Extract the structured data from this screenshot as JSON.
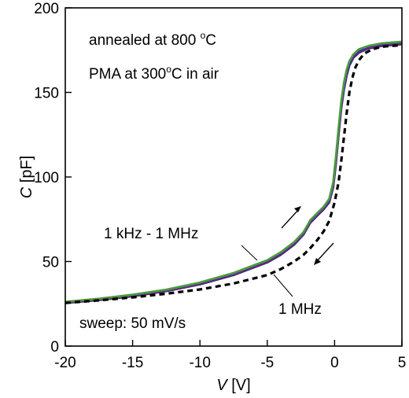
{
  "chart_data": {
    "type": "line",
    "xlabel": {
      "symbol": "V",
      "unit": " [V]"
    },
    "ylabel": {
      "symbol": "C",
      "unit": " [pF]"
    },
    "xlim": [
      -20,
      5
    ],
    "ylim": [
      0,
      200
    ],
    "xticks": [
      -20,
      -15,
      -10,
      -5,
      0,
      5
    ],
    "yticks": [
      0,
      50,
      100,
      150,
      200
    ],
    "grid": false,
    "series": [
      {
        "color": "#2a1a6b",
        "dash": false,
        "x": [
          -20,
          -17.5,
          -15,
          -12.5,
          -10,
          -7.5,
          -5,
          -4,
          -3,
          -2.3,
          -1.8,
          -1.3,
          -0.8,
          -0.4,
          -0.1,
          0.1,
          0.3,
          0.5,
          0.7,
          0.9,
          1.1,
          1.4,
          1.8,
          2.5,
          3.5,
          5
        ],
        "y": [
          25.5,
          27.2,
          29.5,
          32.5,
          36.5,
          42,
          49.5,
          54,
          60,
          66,
          73,
          77,
          81,
          85,
          94,
          108,
          125,
          141,
          152,
          160,
          166,
          170.5,
          173.5,
          176,
          177.5,
          178.5
        ]
      },
      {
        "color": "#a0206e",
        "dash": false,
        "x": [
          -20,
          -17.5,
          -15,
          -12.5,
          -10,
          -7.5,
          -5,
          -4,
          -3,
          -2.3,
          -1.8,
          -1.3,
          -0.8,
          -0.4,
          -0.1,
          0.1,
          0.3,
          0.5,
          0.7,
          0.9,
          1.1,
          1.4,
          1.8,
          2.5,
          3.5,
          5
        ],
        "y": [
          25.7,
          27.5,
          29.8,
          32.8,
          36.9,
          42.4,
          50,
          54.5,
          60.5,
          66.5,
          73.5,
          77.5,
          81.5,
          85.5,
          95,
          109,
          126,
          142,
          153,
          161,
          167,
          171,
          174,
          176.5,
          178,
          179
        ]
      },
      {
        "color": "#2f2fb0",
        "dash": false,
        "x": [
          -20,
          -17.5,
          -15,
          -12.5,
          -10,
          -7.5,
          -5,
          -4,
          -3,
          -2.3,
          -1.8,
          -1.3,
          -0.8,
          -0.4,
          -0.1,
          0.1,
          0.3,
          0.5,
          0.7,
          0.9,
          1.1,
          1.4,
          1.8,
          2.5,
          3.5,
          5
        ],
        "y": [
          26,
          27.8,
          30.1,
          33.1,
          37.2,
          42.8,
          50.4,
          55,
          61,
          67,
          74,
          78,
          82,
          86,
          96,
          110,
          127,
          143,
          154,
          162,
          167.5,
          171.5,
          174.5,
          177,
          178.5,
          179.5
        ]
      },
      {
        "color": "#4b9a3c",
        "dash": false,
        "x": [
          -20,
          -17.5,
          -15,
          -12.5,
          -10,
          -7.5,
          -5,
          -4,
          -3,
          -2.3,
          -1.8,
          -1.3,
          -0.8,
          -0.4,
          -0.1,
          0.1,
          0.3,
          0.5,
          0.7,
          0.9,
          1.1,
          1.4,
          1.8,
          2.5,
          3.5,
          5
        ],
        "y": [
          26.2,
          28,
          30.4,
          33.4,
          37.6,
          43.2,
          50.8,
          55.5,
          61.5,
          67.5,
          74.5,
          78.5,
          82.5,
          87,
          97,
          112,
          129,
          145,
          156,
          163.5,
          168.5,
          172.5,
          175.5,
          177.5,
          179,
          180
        ]
      },
      {
        "color": "#000000",
        "dash": true,
        "x": [
          -20,
          -17.5,
          -15,
          -12.5,
          -10,
          -7.5,
          -5,
          -4,
          -3,
          -2.3,
          -1.8,
          -1.3,
          -0.8,
          -0.4,
          0,
          0.3,
          0.5,
          0.7,
          0.9,
          1.1,
          1.3,
          1.5,
          1.8,
          2.2,
          2.8,
          3.5,
          5
        ],
        "y": [
          25.5,
          27,
          28.8,
          31,
          33.5,
          37,
          42,
          45.5,
          50,
          54,
          58,
          62.5,
          68,
          74,
          85,
          97,
          110,
          124,
          138,
          150,
          158,
          164,
          169,
          173,
          175.5,
          177,
          178
        ]
      }
    ],
    "annotations": {
      "line1_text": "annealed at 800 ",
      "line1_sup": "o",
      "line1_tail": "C",
      "line2_text": "PMA at 300",
      "line2_sup": "o",
      "line2_tail": "C in air",
      "label_all": "1 kHz - 1 MHz",
      "label_1mhz": "1 MHz",
      "sweep": "sweep: 50 mV/s"
    }
  }
}
